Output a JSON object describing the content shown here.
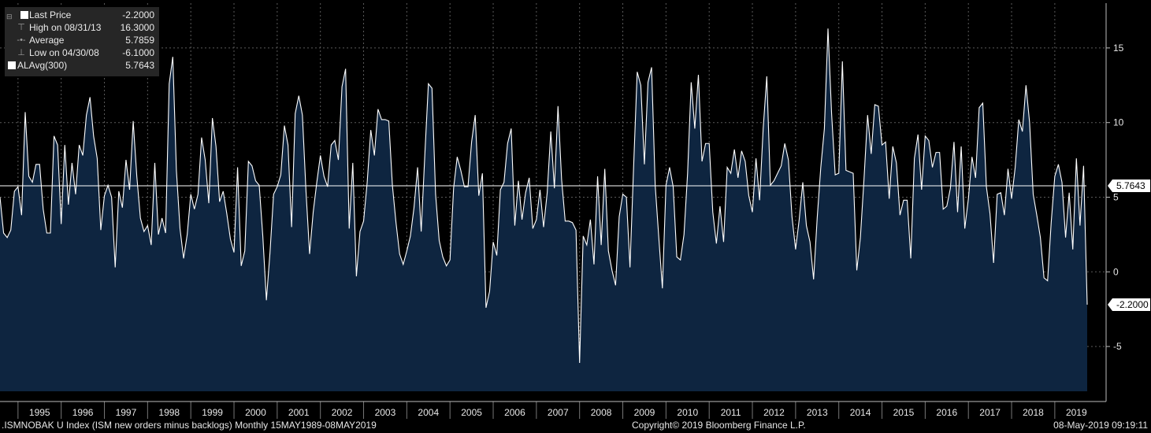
{
  "legend": {
    "items": [
      {
        "label": "Last Price",
        "value": "-2.2000",
        "icon": "white-square"
      },
      {
        "label": "High on 08/31/13",
        "value": "16.3000",
        "icon": "high-marker"
      },
      {
        "label": "Average",
        "value": "5.7859",
        "icon": "average-marker"
      },
      {
        "label": "Low on 04/30/08",
        "value": "-6.1000",
        "icon": "low-marker"
      },
      {
        "label": "ALAvg(300)",
        "value": "5.7643",
        "icon": "white-square"
      }
    ]
  },
  "footer": {
    "left": ".ISMNOBAK U Index (ISM new orders minus backlogs)  Monthly 15MAY1989-08MAY2019",
    "center": "Copyright© 2019 Bloomberg Finance L.P.",
    "right": "08-May-2019 09:19:11"
  },
  "colors": {
    "background": "#000000",
    "area_fill": "#0e2540",
    "line": "#ffffff",
    "grid": "#5a5a5a",
    "legend_bg": "#262626"
  },
  "chart_data": {
    "type": "area",
    "title": "",
    "xlabel": "",
    "ylabel": "",
    "ylim": [
      -8,
      18
    ],
    "y_ticks": [
      15,
      10,
      5,
      0,
      -5
    ],
    "x_ticks": [
      "1995",
      "1996",
      "1997",
      "1998",
      "1999",
      "2000",
      "2001",
      "2002",
      "2003",
      "2004",
      "2005",
      "2006",
      "2007",
      "2008",
      "2009",
      "2010",
      "2011",
      "2012",
      "2013",
      "2014",
      "2015",
      "2016",
      "2017",
      "2018",
      "2019"
    ],
    "xlim": [
      "1994-08",
      "2019-05"
    ],
    "grid": true,
    "reference_line": {
      "label": "5.7643",
      "value": 5.7643
    },
    "last_value_label": {
      "label": "-2.2000",
      "value": -2.2
    },
    "series": [
      {
        "start": "1994-08",
        "frequency": "monthly",
        "values": [
          5.0,
          2.6,
          2.3,
          2.8,
          5.4,
          5.7,
          3.8,
          10.7,
          6.4,
          6.0,
          7.2,
          7.2,
          4.2,
          2.6,
          2.6,
          9.1,
          8.5,
          3.2,
          8.5,
          4.5,
          7.3,
          5.2,
          8.5,
          7.8,
          10.5,
          11.7,
          9.1,
          7.6,
          2.8,
          5.1,
          5.8,
          5.0,
          0.3,
          5.4,
          4.3,
          7.5,
          5.5,
          10.1,
          6.4,
          3.6,
          2.7,
          3.1,
          1.8,
          7.3,
          2.5,
          3.6,
          2.6,
          12.6,
          14.4,
          6.8,
          2.9,
          0.9,
          2.5,
          5.2,
          4.2,
          5.2,
          9.0,
          7.5,
          4.6,
          10.3,
          8.4,
          4.7,
          5.4,
          3.9,
          2.2,
          1.3,
          7.0,
          0.4,
          1.4,
          7.4,
          7.1,
          6.1,
          5.8,
          2.4,
          -1.9,
          1.3,
          5.2,
          5.7,
          6.5,
          9.8,
          8.5,
          3.0,
          10.6,
          11.8,
          10.5,
          5.4,
          1.2,
          4.0,
          6.0,
          7.8,
          6.4,
          5.7,
          8.5,
          8.8,
          7.5,
          12.4,
          13.6,
          2.9,
          7.3,
          -0.3,
          2.7,
          3.4,
          6.0,
          9.5,
          7.8,
          10.9,
          10.2,
          10.2,
          10.1,
          5.8,
          3.3,
          1.2,
          0.5,
          1.4,
          2.4,
          4.3,
          7.0,
          2.7,
          7.8,
          12.6,
          12.3,
          5.2,
          2.1,
          1.0,
          0.4,
          0.8,
          5.6,
          7.7,
          6.8,
          5.7,
          5.7,
          8.7,
          10.5,
          5.1,
          6.6,
          -2.4,
          -1.3,
          2.0,
          1.1,
          5.5,
          6.0,
          8.6,
          9.6,
          3.1,
          6.1,
          3.5,
          5.3,
          6.3,
          2.9,
          3.5,
          5.5,
          3.0,
          5.3,
          9.4,
          5.6,
          11.1,
          6.2,
          3.4,
          3.4,
          3.3,
          2.8,
          -6.1,
          2.4,
          1.8,
          3.5,
          0.5,
          6.4,
          1.8,
          6.9,
          1.4,
          0.1,
          -0.9,
          3.7,
          5.2,
          5.0,
          0.3,
          7.0,
          13.4,
          12.5,
          7.2,
          12.7,
          13.7,
          5.8,
          2.3,
          -1.1,
          5.8,
          7.0,
          5.7,
          1.0,
          0.8,
          2.5,
          6.6,
          12.7,
          9.6,
          13.2,
          7.4,
          8.6,
          8.6,
          4.0,
          1.9,
          4.4,
          2.0,
          7.0,
          6.6,
          8.2,
          6.3,
          8.1,
          7.4,
          5.1,
          4.0,
          7.6,
          4.8,
          9.6,
          13.1,
          5.8,
          6.1,
          6.6,
          7.1,
          8.6,
          7.5,
          3.7,
          1.5,
          3.5,
          6.0,
          3.1,
          2.0,
          -0.5,
          3.6,
          7.0,
          9.6,
          16.3,
          10.6,
          6.5,
          6.6,
          14.1,
          6.8,
          6.7,
          6.6,
          0.1,
          2.3,
          6.2,
          10.5,
          7.9,
          11.2,
          11.1,
          8.5,
          8.7,
          4.9,
          8.4,
          7.3,
          3.8,
          4.8,
          4.8,
          0.9,
          7.6,
          9.2,
          5.5,
          9.1,
          8.8,
          7.0,
          8.0,
          8.0,
          4.2,
          4.4,
          5.6,
          8.7,
          4.0,
          8.4,
          2.9,
          4.9,
          7.7,
          6.3,
          11.0,
          11.3,
          5.7,
          3.9,
          0.6,
          5.2,
          5.3,
          3.8,
          6.9,
          4.9,
          7.0,
          10.2,
          9.4,
          12.5,
          10.0,
          5.2,
          3.8,
          2.3,
          -0.4,
          -0.6,
          3.3,
          6.4,
          7.2,
          6.0,
          2.3,
          5.3,
          1.5,
          7.6,
          3.1,
          7.1,
          -2.2
        ]
      }
    ]
  }
}
